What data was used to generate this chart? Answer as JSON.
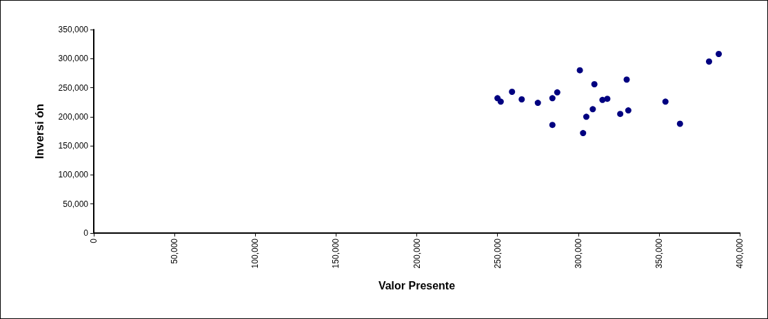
{
  "chart_data": {
    "type": "scatter",
    "xlabel": "Valor Presente",
    "ylabel": "Inversi ón",
    "x": [
      250000,
      252000,
      259000,
      265000,
      275000,
      284000,
      287000,
      284000,
      301000,
      310000,
      330000,
      303000,
      305000,
      309000,
      315000,
      318000,
      326000,
      331000,
      354000,
      363000,
      381000,
      387000
    ],
    "series": [
      {
        "color": "#000080",
        "values": [
          232000,
          226000,
          243000,
          230000,
          224000,
          232000,
          242000,
          186000,
          280000,
          256000,
          264000,
          172000,
          200000,
          213000,
          229000,
          231000,
          205000,
          211000,
          226000,
          188000,
          295000,
          308000
        ]
      }
    ],
    "xlim": [
      0,
      400000
    ],
    "xticks": [
      0,
      {
        "value": 50000,
        "label": "50,000"
      },
      {
        "value": 100000,
        "label": "100,000"
      },
      {
        "value": 150000,
        "label": "150,000"
      },
      {
        "value": 200000,
        "label": "200,000"
      },
      {
        "value": 250000,
        "label": "250,000"
      },
      {
        "value": 300000,
        "label": "300,000"
      },
      {
        "value": 350000,
        "label": "350,000"
      },
      {
        "value": 400000,
        "label": "400,000"
      }
    ],
    "ylim": [
      0,
      350000
    ],
    "yticks": [
      0,
      {
        "value": 50000,
        "label": "50,000"
      },
      {
        "value": 100000,
        "label": "100,000"
      },
      {
        "value": 150000,
        "label": "150,000"
      },
      {
        "value": 200000,
        "label": "200,000"
      },
      {
        "value": 250000,
        "label": "250,000"
      },
      {
        "value": 300000,
        "label": "300,000"
      },
      {
        "value": 350000,
        "label": "350,000"
      }
    ],
    "grid": false,
    "marker": "circle"
  }
}
